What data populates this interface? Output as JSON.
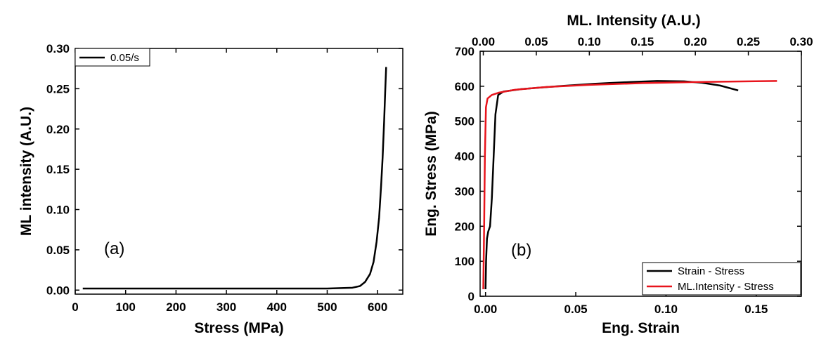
{
  "chart_data": [
    {
      "panel_label": "(a)",
      "type": "line",
      "xlabel": "Stress (MPa)",
      "ylabel": "ML intensity (A.U.)",
      "xlim": [
        0,
        650
      ],
      "ylim": [
        -0.005,
        0.3
      ],
      "xticks": [
        0,
        100,
        200,
        300,
        400,
        500,
        600
      ],
      "yticks": [
        0.0,
        0.05,
        0.1,
        0.15,
        0.2,
        0.25,
        0.3
      ],
      "ytick_labels": [
        "0.00",
        "0.05",
        "0.10",
        "0.15",
        "0.20",
        "0.25",
        "0.30"
      ],
      "legend_position": "top-left",
      "grid": false,
      "series": [
        {
          "name": "0.05/s",
          "color": "#000000",
          "x": [
            15,
            100,
            200,
            300,
            400,
            500,
            550,
            565,
            575,
            585,
            592,
            598,
            603,
            607,
            610,
            613,
            615,
            617
          ],
          "y": [
            0.002,
            0.002,
            0.002,
            0.002,
            0.002,
            0.002,
            0.003,
            0.005,
            0.01,
            0.02,
            0.035,
            0.06,
            0.09,
            0.13,
            0.165,
            0.21,
            0.245,
            0.277
          ]
        }
      ]
    },
    {
      "panel_label": "(b)",
      "type": "line",
      "xlabel": "Eng. Strain",
      "x2label": "ML. Intensity (A.U.)",
      "ylabel": "Eng. Stress (MPa)",
      "xlim": [
        -0.003,
        0.175
      ],
      "x2lim": [
        -0.003,
        0.3
      ],
      "ylim": [
        0,
        700
      ],
      "xticks": [
        0.0,
        0.05,
        0.1,
        0.15
      ],
      "xtick_labels": [
        "0.00",
        "0.05",
        "0.10",
        "0.15"
      ],
      "x2ticks": [
        0.0,
        0.05,
        0.1,
        0.15,
        0.2,
        0.25,
        0.3
      ],
      "x2tick_labels": [
        "0.00",
        "0.05",
        "0.10",
        "0.15",
        "0.20",
        "0.25",
        "0.30"
      ],
      "yticks": [
        0,
        100,
        200,
        300,
        400,
        500,
        600,
        700
      ],
      "legend_position": "bottom-right",
      "grid": false,
      "series": [
        {
          "name": "Strain - Stress",
          "axis": "bottom",
          "color": "#000000",
          "x": [
            0.0,
            0.0003,
            0.0008,
            0.0015,
            0.0025,
            0.0035,
            0.0045,
            0.0055,
            0.007,
            0.01,
            0.02,
            0.04,
            0.06,
            0.08,
            0.095,
            0.11,
            0.12,
            0.13,
            0.14
          ],
          "y": [
            20,
            100,
            165,
            185,
            200,
            280,
            400,
            520,
            575,
            585,
            592,
            600,
            607,
            612,
            615,
            614,
            610,
            602,
            588
          ]
        },
        {
          "name": "ML.Intensity - Stress",
          "axis": "top",
          "color": "#e8141c",
          "x": [
            0.0,
            0.0008,
            0.0015,
            0.0025,
            0.004,
            0.008,
            0.015,
            0.03,
            0.06,
            0.1,
            0.15,
            0.2,
            0.25,
            0.277
          ],
          "y": [
            20,
            200,
            400,
            540,
            565,
            575,
            582,
            590,
            598,
            604,
            609,
            612,
            614,
            615
          ]
        }
      ]
    }
  ]
}
